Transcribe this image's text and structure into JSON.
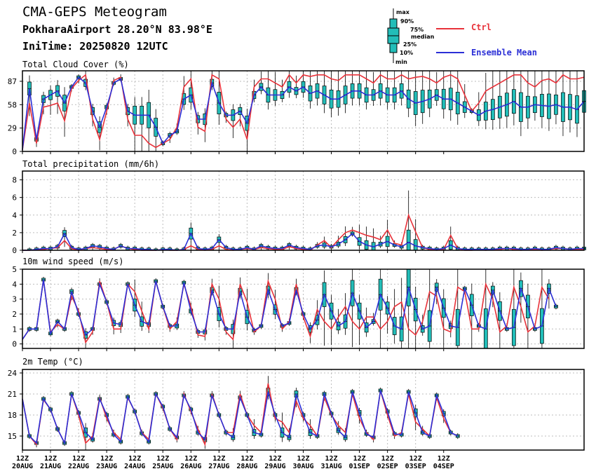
{
  "header": {
    "title": "CMA-GEPS Meteogram",
    "location": "PokharaAirport 28.20°N 83.98°E",
    "init_time": "IniTime: 20250820 12UTC"
  },
  "legend": {
    "box_keys": [
      "max",
      "90%",
      "75%",
      "median",
      "25%",
      "10%",
      "min"
    ],
    "ctrl_label": "Ctrl",
    "mean_label": "Ensemble Mean",
    "ctrl_color": "#e8323a",
    "mean_color": "#2b2fd6",
    "box_color": "#22bdb8"
  },
  "x_axis": {
    "hour_labels": [
      "12Z",
      "12Z",
      "12Z",
      "12Z",
      "12Z",
      "12Z",
      "12Z",
      "12Z",
      "12Z",
      "12Z",
      "12Z",
      "12Z",
      "12Z",
      "12Z",
      "12Z",
      "12Z"
    ],
    "date_labels": [
      "20AUG",
      "21AUG",
      "22AUG",
      "23AUG",
      "24AUG",
      "25AUG",
      "26AUG",
      "27AUG",
      "28AUG",
      "29AUG",
      "30AUG",
      "31AUG",
      "01SEP",
      "02SEP",
      "03SEP",
      "04SEP"
    ]
  },
  "chart_data": [
    {
      "type": "box+line",
      "title": "Total Cloud Cover (%)",
      "ylim": [
        0,
        100
      ],
      "yticks": [
        0,
        29,
        58,
        87
      ],
      "grid": true,
      "x_step_hours": 6,
      "x_start": "2025-08-20 12UTC",
      "series": [
        {
          "name": "Ctrl",
          "values": [
            2,
            60,
            10,
            55,
            57,
            60,
            38,
            78,
            88,
            95,
            40,
            15,
            50,
            88,
            92,
            40,
            20,
            20,
            10,
            5,
            10,
            15,
            30,
            80,
            90,
            30,
            25,
            95,
            90,
            40,
            30,
            40,
            15,
            80,
            90,
            90,
            85,
            80,
            95,
            85,
            95,
            93,
            95,
            95,
            90,
            88,
            95,
            95,
            95,
            90,
            85,
            95,
            90,
            90,
            95,
            90,
            92,
            93,
            90,
            85,
            92,
            95,
            90,
            70,
            50,
            60,
            75,
            80,
            85,
            90,
            95,
            95,
            85,
            80,
            88,
            90,
            85,
            95,
            90,
            90,
            92
          ]
        },
        {
          "name": "Ensemble Mean",
          "values": [
            2,
            78,
            15,
            65,
            70,
            75,
            60,
            80,
            92,
            85,
            50,
            30,
            55,
            85,
            90,
            50,
            45,
            45,
            45,
            30,
            10,
            20,
            25,
            65,
            70,
            40,
            40,
            85,
            60,
            45,
            45,
            50,
            35,
            70,
            80,
            70,
            70,
            70,
            80,
            75,
            80,
            72,
            75,
            70,
            65,
            65,
            70,
            75,
            75,
            70,
            70,
            75,
            70,
            70,
            75,
            65,
            60,
            62,
            65,
            70,
            65,
            65,
            60,
            55,
            50,
            45,
            50,
            52,
            55,
            58,
            62,
            55,
            55,
            58,
            57,
            56,
            58,
            55,
            55,
            52,
            62
          ]
        }
      ]
    },
    {
      "type": "box+line",
      "title": "Total precipitation (mm/6h)",
      "ylim": [
        0,
        9
      ],
      "yticks": [
        0,
        2,
        4,
        6,
        8
      ],
      "grid": true,
      "x_step_hours": 6,
      "x_start": "2025-08-20 12UTC",
      "series": [
        {
          "name": "Ctrl",
          "values": [
            0,
            0,
            0.1,
            0.1,
            0.2,
            0.3,
            1.1,
            0.2,
            0,
            0.2,
            0.3,
            0.2,
            0.1,
            0.1,
            0.5,
            0.2,
            0.1,
            0,
            0,
            0,
            0.1,
            0,
            0,
            0.1,
            0.5,
            0.1,
            0,
            0.1,
            0.5,
            0.1,
            0,
            0.1,
            0.2,
            0.1,
            0.3,
            0.2,
            0.1,
            0.1,
            0.4,
            0.2,
            0.1,
            0,
            0.6,
            1.1,
            0.3,
            1.2,
            2.0,
            2.3,
            2.0,
            1.7,
            1.5,
            1.2,
            2.3,
            0.8,
            0.6,
            4.0,
            2.1,
            0.3,
            0.1,
            0,
            0.1,
            1.7,
            0.2,
            0,
            0,
            0.1,
            0,
            0.1,
            0.1,
            0.2,
            0.1,
            0,
            0.1,
            0.1,
            0,
            0.1,
            0.2,
            0.2,
            0.1,
            0.1,
            0.1
          ]
        },
        {
          "name": "Ensemble Mean",
          "values": [
            0,
            0,
            0.1,
            0.2,
            0.2,
            0.4,
            1.9,
            0.3,
            0.1,
            0.2,
            0.5,
            0.4,
            0.2,
            0.1,
            0.5,
            0.2,
            0.2,
            0.1,
            0.1,
            0,
            0.1,
            0.1,
            0,
            0.1,
            1.9,
            0.2,
            0.1,
            0.2,
            1.2,
            0.3,
            0.1,
            0.1,
            0.3,
            0.1,
            0.5,
            0.3,
            0.2,
            0.2,
            0.6,
            0.3,
            0.2,
            0.1,
            0.5,
            0.6,
            0.4,
            0.7,
            1.2,
            1.9,
            1.0,
            0.6,
            0.4,
            0.7,
            1.0,
            0.6,
            0.4,
            0.9,
            0.5,
            0.3,
            0.2,
            0.1,
            0.2,
            0.6,
            0.2,
            0.1,
            0.1,
            0.1,
            0.1,
            0.1,
            0.2,
            0.2,
            0.2,
            0.1,
            0.1,
            0.2,
            0.1,
            0.1,
            0.3,
            0.2,
            0.1,
            0.2,
            0.2
          ]
        }
      ]
    },
    {
      "type": "box+line",
      "title": "10m wind speed (m/s)",
      "ylim": [
        -0.3,
        5
      ],
      "yticks": [
        0,
        1,
        2,
        3,
        4,
        5
      ],
      "grid": true,
      "x_step_hours": 6,
      "x_start": "2025-08-20 12UTC",
      "series": [
        {
          "name": "Ctrl",
          "values": [
            0.3,
            1.0,
            1.0,
            4.3,
            0.8,
            1.3,
            1.0,
            3.2,
            2.2,
            0.1,
            0.8,
            4.2,
            2.8,
            1.0,
            1.0,
            4.0,
            3.5,
            2.2,
            1.0,
            4.2,
            2.5,
            1.0,
            1.5,
            4.0,
            2.5,
            0.6,
            0.5,
            4.0,
            3.0,
            0.8,
            0.3,
            4.0,
            2.8,
            0.8,
            1.2,
            4.2,
            3.0,
            1.0,
            1.5,
            4.0,
            1.8,
            0.5,
            2.3,
            1.5,
            1.0,
            1.8,
            2.5,
            1.5,
            1.0,
            1.8,
            1.8,
            1.0,
            1.5,
            2.5,
            2.8,
            1.0,
            0.6,
            1.5,
            3.5,
            3.2,
            1.0,
            0.8,
            3.8,
            3.5,
            1.0,
            1.0,
            4.0,
            3.0,
            0.8,
            1.2,
            3.8,
            2.5,
            0.8,
            1.2,
            3.8,
            3.0
          ]
        },
        {
          "name": "Ensemble Mean",
          "values": [
            0.3,
            1.0,
            1.0,
            4.3,
            0.7,
            1.5,
            1.0,
            3.5,
            2.0,
            0.6,
            1.0,
            4.0,
            2.8,
            1.4,
            1.3,
            4.0,
            2.6,
            1.5,
            1.3,
            4.2,
            2.5,
            1.2,
            1.2,
            4.1,
            2.2,
            0.8,
            0.8,
            3.6,
            2.0,
            1.0,
            1.0,
            3.5,
            1.8,
            0.9,
            1.2,
            3.6,
            2.3,
            1.2,
            1.4,
            3.6,
            2.0,
            1.0,
            1.6,
            3.3,
            2.2,
            1.2,
            1.5,
            3.4,
            2.2,
            1.1,
            1.5,
            3.3,
            2.4,
            1.2,
            1.0,
            3.8,
            2.3,
            1.0,
            1.2,
            3.8,
            2.4,
            1.2,
            1.1,
            3.7,
            2.6,
            1.2,
            1.0,
            3.6,
            2.2,
            1.0,
            1.1,
            3.7,
            2.5,
            1.0,
            1.2,
            3.7,
            2.5
          ]
        }
      ]
    },
    {
      "type": "box+line",
      "title": "2m Temp (°C)",
      "ylim": [
        13,
        24.5
      ],
      "yticks": [
        15,
        18,
        21,
        24
      ],
      "grid": true,
      "x_step_hours": 6,
      "x_start": "2025-08-20 12UTC",
      "series": [
        {
          "name": "Ctrl",
          "values": [
            20.3,
            15.0,
            13.8,
            20.2,
            18.8,
            16.0,
            14.0,
            21.0,
            18.0,
            14.0,
            15.0,
            20.5,
            17.5,
            15.5,
            14.5,
            20.5,
            18.5,
            15.5,
            14.5,
            21.0,
            19.0,
            16.0,
            14.5,
            21.0,
            18.5,
            16.0,
            13.8,
            21.0,
            18.0,
            15.5,
            15.5,
            21.0,
            18.0,
            16.5,
            15.5,
            22.5,
            17.5,
            17.0,
            15.5,
            20.0,
            17.5,
            16.5,
            15.0,
            20.5,
            18.0,
            16.5,
            15.5,
            21.0,
            17.5,
            15.5,
            14.5,
            21.5,
            18.0,
            15.0,
            15.5,
            21.0,
            17.0,
            16.0,
            15.0,
            20.5,
            17.5,
            15.5,
            15.0
          ]
        },
        {
          "name": "Ensemble Mean",
          "values": [
            20.3,
            15.0,
            14.0,
            20.3,
            18.8,
            16.0,
            14.0,
            21.0,
            18.3,
            15.5,
            14.5,
            20.3,
            18.0,
            15.2,
            14.2,
            20.6,
            18.5,
            15.4,
            14.2,
            21.0,
            19.2,
            16.0,
            14.8,
            20.8,
            18.8,
            15.5,
            14.5,
            20.8,
            18.0,
            15.5,
            14.8,
            20.5,
            18.0,
            15.5,
            15.2,
            21.3,
            18.0,
            15.5,
            14.8,
            21.0,
            18.0,
            15.5,
            15.0,
            21.0,
            18.2,
            15.8,
            14.8,
            21.3,
            18.3,
            15.3,
            14.8,
            21.5,
            18.5,
            15.3,
            15.2,
            21.3,
            18.3,
            15.5,
            15.0,
            20.8,
            18.2,
            15.5,
            15.0
          ]
        }
      ]
    }
  ]
}
